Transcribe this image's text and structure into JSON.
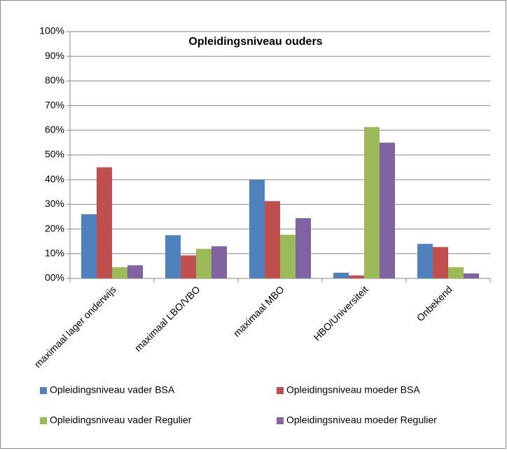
{
  "chart_data": {
    "type": "bar",
    "title": "Opleidingsniveau ouders",
    "categories": [
      "maximaal lager onderwijs",
      "maximaal LBO/VBO",
      "maximaal MBO",
      "HBO/Universiteit",
      "Onbekend"
    ],
    "series": [
      {
        "name": "Opleidingsniveau vader BSA",
        "color": "#4f81bd",
        "values": [
          26,
          17.5,
          40,
          2.3,
          14
        ]
      },
      {
        "name": "Opleidingsniveau moeder BSA",
        "color": "#c0504d",
        "values": [
          45,
          9.3,
          31.3,
          1.2,
          12.7
        ]
      },
      {
        "name": "Opleidingsniveau vader Regulier",
        "color": "#9bbb59",
        "values": [
          4.5,
          12,
          17.7,
          61.3,
          4.5
        ]
      },
      {
        "name": "Opleidingsniveau moeder Regulier",
        "color": "#8064a2",
        "values": [
          5.3,
          13,
          24.4,
          55,
          2
        ]
      }
    ],
    "ylim": [
      0,
      100
    ],
    "yticks": [
      {
        "value": 0,
        "label": "00%"
      },
      {
        "value": 10,
        "label": "10%"
      },
      {
        "value": 20,
        "label": "20%"
      },
      {
        "value": 30,
        "label": "30%"
      },
      {
        "value": 40,
        "label": "40%"
      },
      {
        "value": 50,
        "label": "50%"
      },
      {
        "value": 60,
        "label": "60%"
      },
      {
        "value": 70,
        "label": "70%"
      },
      {
        "value": 80,
        "label": "80%"
      },
      {
        "value": 90,
        "label": "90%"
      },
      {
        "value": 100,
        "label": "100%"
      }
    ],
    "grid": true
  }
}
